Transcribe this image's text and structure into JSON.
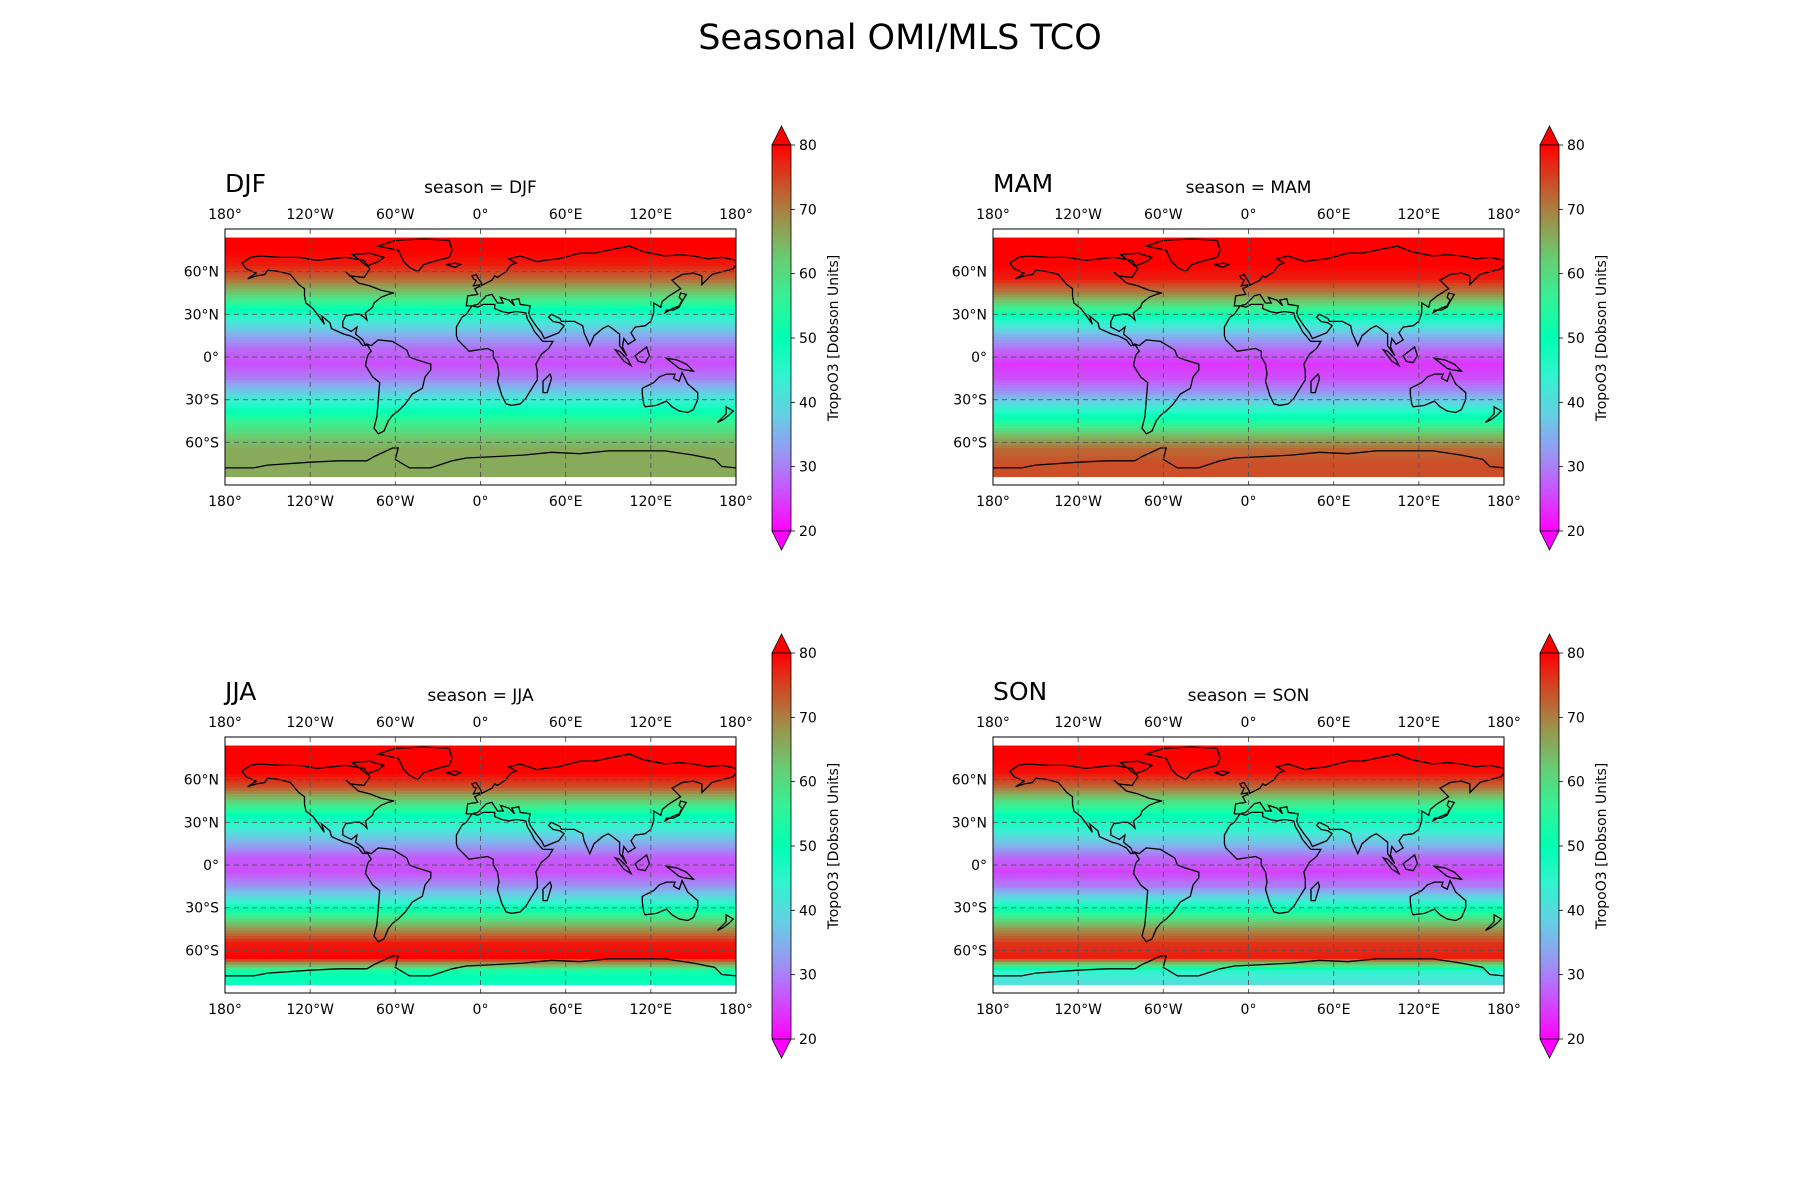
{
  "figure": {
    "title": "Seasonal OMI/MLS TCO"
  },
  "chart_data": {
    "type": "heatmap",
    "title": "Seasonal OMI/MLS TCO",
    "projection": "PlateCarree",
    "colormap": "rainbow",
    "grid": true,
    "x_ticks": [
      "180°",
      "120°W",
      "60°W",
      "0°",
      "60°E",
      "120°E",
      "180°"
    ],
    "y_ticks": [
      "60°N",
      "30°N",
      "0°",
      "30°S",
      "60°S"
    ],
    "colorbar": {
      "label": "TropoO3 [Dobson Units]",
      "range": [
        20,
        80
      ],
      "ticks": [
        "80",
        "70",
        "60",
        "50",
        "40",
        "30",
        "20"
      ],
      "extend": "both"
    },
    "panels": [
      {
        "label": "DJF",
        "title": "season = DJF",
        "zonal_profile": {
          "lat": [
            84,
            75,
            65,
            55,
            45,
            35,
            25,
            15,
            5,
            -5,
            -15,
            -25,
            -35,
            -45,
            -55,
            -65,
            -75,
            -84
          ],
          "value": [
            80,
            80,
            78,
            72,
            63,
            52,
            42,
            34,
            28,
            26,
            30,
            38,
            47,
            56,
            62,
            66,
            66,
            66
          ]
        }
      },
      {
        "label": "MAM",
        "title": "season = MAM",
        "zonal_profile": {
          "lat": [
            84,
            75,
            65,
            55,
            45,
            35,
            25,
            15,
            5,
            -5,
            -15,
            -25,
            -35,
            -45,
            -55,
            -65,
            -75,
            -84
          ],
          "value": [
            80,
            80,
            80,
            78,
            70,
            58,
            45,
            35,
            28,
            24,
            26,
            32,
            42,
            53,
            64,
            72,
            74,
            74
          ]
        }
      },
      {
        "label": "JJA",
        "title": "season = JJA",
        "zonal_profile": {
          "lat": [
            84,
            75,
            65,
            55,
            45,
            35,
            25,
            15,
            5,
            -5,
            -15,
            -25,
            -35,
            -45,
            -55,
            -65,
            -75,
            -84
          ],
          "value": [
            80,
            80,
            80,
            74,
            62,
            50,
            42,
            34,
            27,
            26,
            32,
            42,
            56,
            68,
            78,
            80,
            52,
            48
          ]
        }
      },
      {
        "label": "SON",
        "title": "season = SON",
        "zonal_profile": {
          "lat": [
            84,
            75,
            65,
            55,
            45,
            35,
            25,
            15,
            5,
            -5,
            -15,
            -25,
            -35,
            -45,
            -55,
            -65,
            -75,
            -84
          ],
          "value": [
            80,
            80,
            79,
            72,
            60,
            50,
            44,
            36,
            28,
            25,
            30,
            42,
            56,
            68,
            76,
            78,
            44,
            40
          ]
        }
      }
    ]
  }
}
